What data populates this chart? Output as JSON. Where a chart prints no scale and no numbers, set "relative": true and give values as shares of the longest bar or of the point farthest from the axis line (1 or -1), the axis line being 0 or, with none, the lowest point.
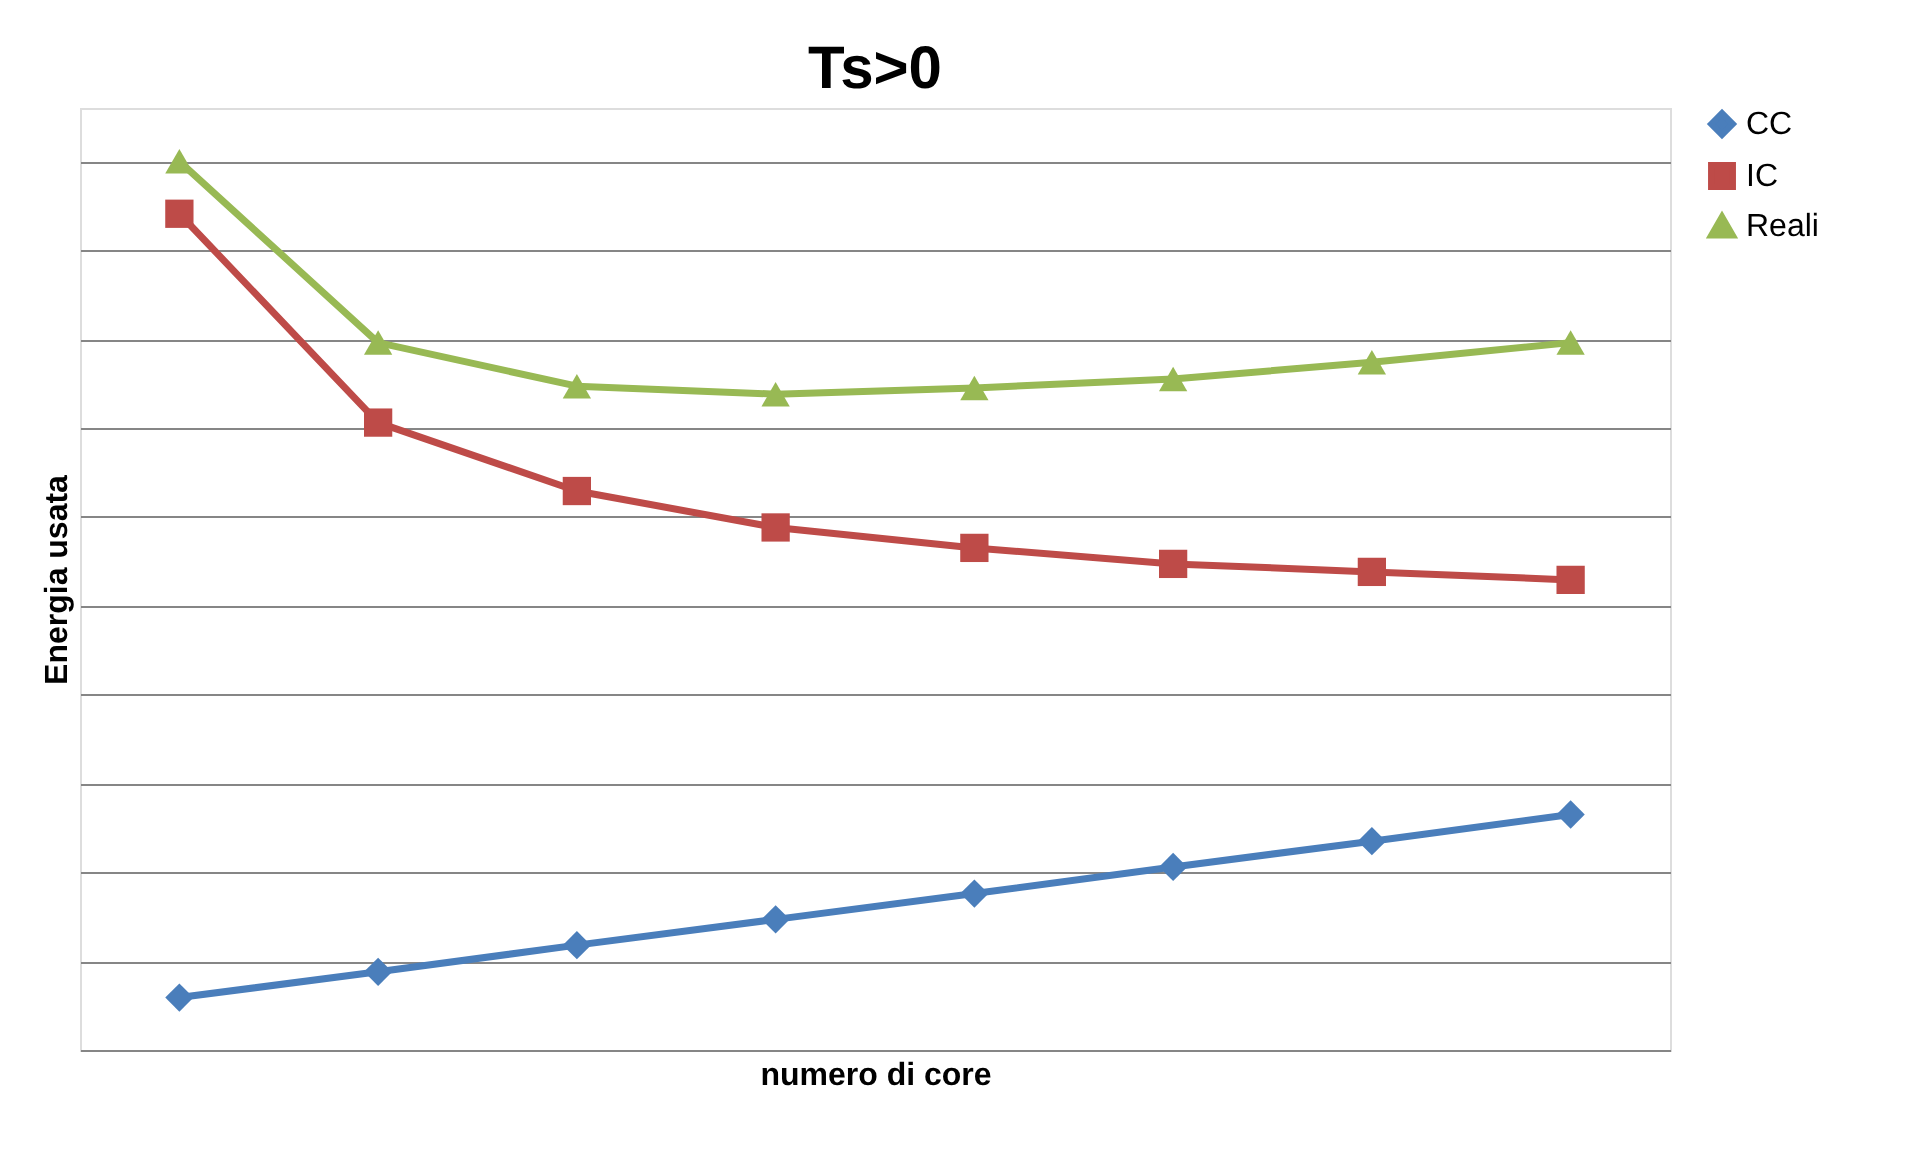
{
  "chart_data": {
    "type": "line",
    "title": "Ts>0",
    "xlabel": "numero di core",
    "ylabel": "Energia usata",
    "relative": true,
    "grid": "y",
    "legend": "right",
    "tick_labels": false,
    "line_style": "solid",
    "categories": [
      null,
      null,
      null,
      null,
      null,
      null,
      null,
      null
    ],
    "series": [
      {
        "name": "CC",
        "color": "#4a7ebb",
        "marker": "diamond",
        "values": [
          0.059,
          0.088,
          0.118,
          0.147,
          0.176,
          0.206,
          0.235,
          0.265
        ]
      },
      {
        "name": "IC",
        "color": "#be4b48",
        "marker": "square",
        "values": [
          0.941,
          0.706,
          0.629,
          0.588,
          0.565,
          0.547,
          0.538,
          0.529
        ]
      },
      {
        "name": "Reali",
        "color": "#98b954",
        "marker": "triangle",
        "values": [
          1,
          0.796,
          0.747,
          0.738,
          0.745,
          0.755,
          0.774,
          0.796
        ]
      }
    ]
  }
}
